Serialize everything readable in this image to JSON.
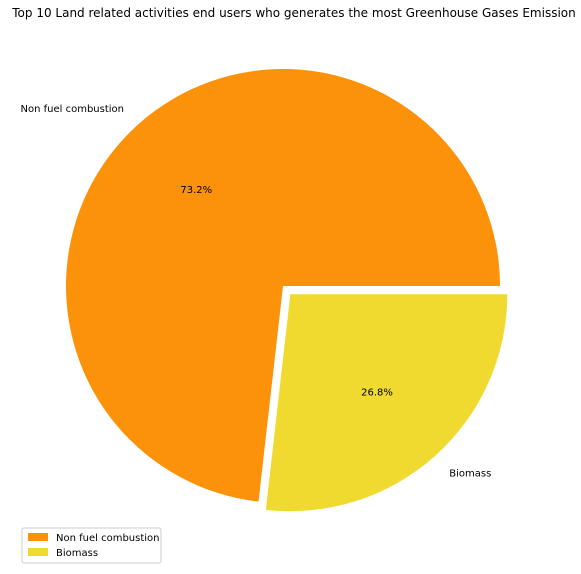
{
  "chart_data": {
    "type": "pie",
    "title": "Top 10 Land related activities end users who generates the most Greenhouse Gases Emission",
    "slices": [
      {
        "label": "Non fuel combustion",
        "value": 73.2,
        "pct_label": "73.2%",
        "color": "#fb9209",
        "explode": false
      },
      {
        "label": "Biomass",
        "value": 26.8,
        "pct_label": "26.8%",
        "color": "#f0da2f",
        "explode": true
      }
    ],
    "legend": {
      "placement": "lower-left",
      "entries": [
        "Non fuel combustion",
        "Biomass"
      ]
    }
  }
}
